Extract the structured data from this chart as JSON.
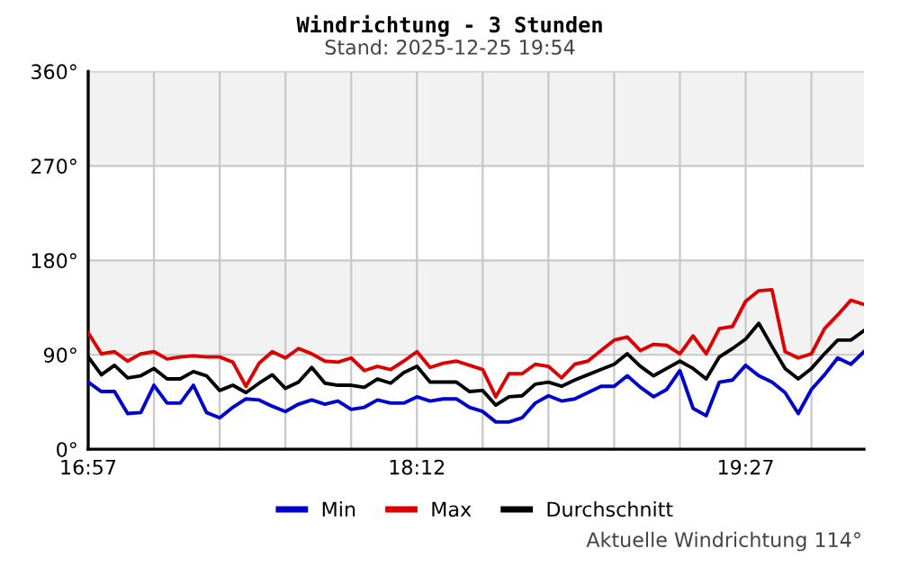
{
  "chart_data": {
    "type": "line",
    "title": "Windrichtung - 3 Stunden",
    "subtitle": "Stand: 2025-12-25 19:54",
    "x": [
      16.95,
      17.0,
      17.05,
      17.1,
      17.15,
      17.2,
      17.25,
      17.3,
      17.35,
      17.4,
      17.45,
      17.5,
      17.55,
      17.6,
      17.65,
      17.7,
      17.75,
      17.8,
      17.85,
      17.9,
      17.95,
      18.0,
      18.05,
      18.1,
      18.15,
      18.2,
      18.25,
      18.3,
      18.35,
      18.4,
      18.45,
      18.5,
      18.55,
      18.6,
      18.65,
      18.7,
      18.75,
      18.8,
      18.85,
      18.9,
      18.95,
      19.0,
      19.05,
      19.1,
      19.15,
      19.2,
      19.25,
      19.3,
      19.35,
      19.4,
      19.45,
      19.5,
      19.55,
      19.6,
      19.65,
      19.7,
      19.75,
      19.8,
      19.85,
      19.9
    ],
    "series": [
      {
        "name": "Min",
        "color": "#0000cc",
        "values": [
          64,
          55,
          55,
          34,
          35,
          61,
          44,
          44,
          61,
          35,
          30,
          40,
          48,
          47,
          41,
          36,
          43,
          47,
          43,
          46,
          38,
          40,
          47,
          44,
          44,
          50,
          46,
          48,
          48,
          40,
          36,
          26,
          26,
          30,
          44,
          51,
          46,
          48,
          54,
          60,
          60,
          70,
          59,
          50,
          57,
          75,
          39,
          32,
          64,
          66,
          80,
          70,
          64,
          54,
          34,
          57,
          71,
          87,
          81,
          93
        ]
      },
      {
        "name": "Max",
        "color": "#dd0000",
        "values": [
          111,
          91,
          93,
          84,
          91,
          93,
          86,
          88,
          89,
          88,
          88,
          83,
          60,
          82,
          93,
          87,
          96,
          91,
          84,
          83,
          87,
          75,
          79,
          76,
          84,
          93,
          78,
          82,
          84,
          80,
          76,
          50,
          72,
          72,
          81,
          79,
          68,
          81,
          84,
          94,
          104,
          107,
          94,
          100,
          99,
          91,
          108,
          91,
          115,
          117,
          141,
          151,
          152,
          93,
          87,
          91,
          115,
          128,
          142,
          138
        ]
      },
      {
        "name": "Durchschnitt",
        "color": "#000000",
        "values": [
          88,
          71,
          80,
          68,
          70,
          77,
          67,
          67,
          74,
          70,
          56,
          61,
          54,
          63,
          71,
          58,
          64,
          78,
          63,
          61,
          61,
          59,
          67,
          63,
          73,
          79,
          64,
          64,
          64,
          55,
          56,
          42,
          50,
          51,
          62,
          64,
          60,
          66,
          71,
          76,
          81,
          91,
          79,
          70,
          77,
          84,
          77,
          67,
          88,
          96,
          105,
          120,
          98,
          77,
          67,
          77,
          91,
          104,
          104,
          113
        ]
      }
    ],
    "xlim": [
      16.95,
      19.9
    ],
    "xticks": [
      {
        "value": 16.95,
        "label": "16:57"
      },
      {
        "value": 17.2,
        "label": null
      },
      {
        "value": 17.45,
        "label": null
      },
      {
        "value": 17.7,
        "label": null
      },
      {
        "value": 17.95,
        "label": null
      },
      {
        "value": 18.2,
        "label": "18:12"
      },
      {
        "value": 18.45,
        "label": null
      },
      {
        "value": 18.7,
        "label": null
      },
      {
        "value": 18.95,
        "label": null
      },
      {
        "value": 19.2,
        "label": null
      },
      {
        "value": 19.45,
        "label": "19:27"
      },
      {
        "value": 19.7,
        "label": null
      }
    ],
    "ylim": [
      0,
      360
    ],
    "yticks": [
      {
        "value": 0,
        "label": "0°"
      },
      {
        "value": 90,
        "label": "90°"
      },
      {
        "value": 180,
        "label": "180°"
      },
      {
        "value": 270,
        "label": "270°"
      },
      {
        "value": 360,
        "label": "360°"
      }
    ],
    "bands": [
      {
        "axis": "y",
        "from": 90,
        "to": 180,
        "color": "#f2f2f2"
      },
      {
        "axis": "y",
        "from": 270,
        "to": 360,
        "color": "#f2f2f2"
      }
    ],
    "grid": true,
    "legend": "bottom",
    "line_style": "solid",
    "marker": "none",
    "annotations": [
      "Aktuelle Windrichtung 114°"
    ]
  }
}
